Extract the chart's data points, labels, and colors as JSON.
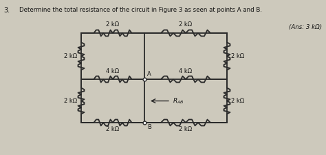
{
  "title_num": "3.",
  "title_text": "Determine the total resistance of the circuit in Figure 3 as seen at points A and B.",
  "answer": "(Ans: 3 kΩ)",
  "background_color": "#cdc9bc",
  "line_color": "#2a2a2a",
  "resistor_labels": {
    "top_left": "2 kΩ",
    "top_right": "2 kΩ",
    "left_top": "2 kΩ",
    "left_bottom": "2 kΩ",
    "mid_left": "4 kΩ",
    "mid_right": "4 kΩ",
    "right_top": "2 kΩ",
    "right_bottom": "2 kΩ",
    "bot_left": "2 kΩ",
    "bot_right": "2 kΩ"
  },
  "point_A": "A",
  "point_B": "B",
  "RAB_label": "R_{AB}",
  "xL": 118,
  "xM1": 195,
  "xM2": 278,
  "xR": 340,
  "yT": 48,
  "yM": 115,
  "yB": 178
}
